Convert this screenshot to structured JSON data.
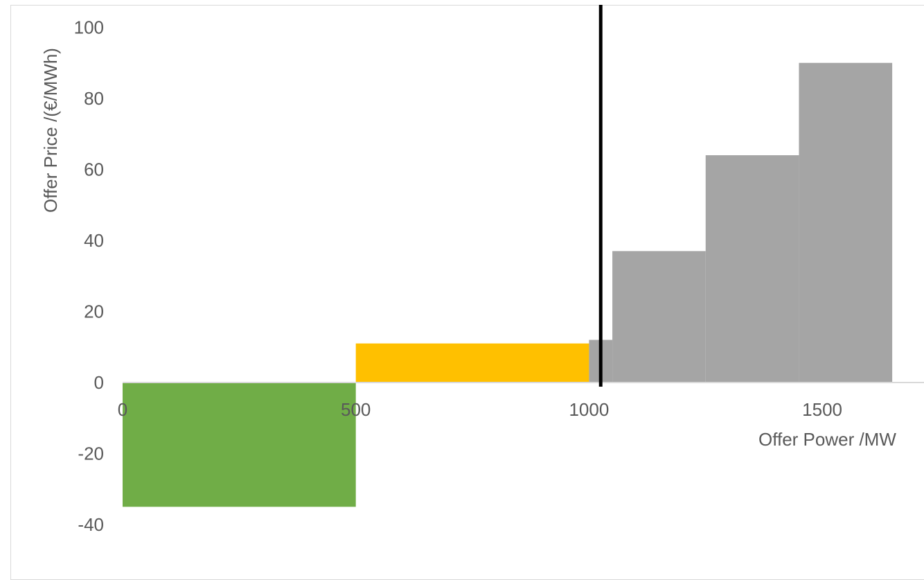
{
  "chart_data": {
    "type": "bar",
    "subtype": "stepped supply curve (variable-width bars)",
    "xlabel": "Offer Power /MW",
    "ylabel": "Offer Price /(€/MWh)",
    "xlim": [
      0,
      1700
    ],
    "ylim": [
      -40,
      100
    ],
    "x_ticks": [
      "0",
      "500",
      "1000",
      "1500"
    ],
    "y_ticks": [
      "100",
      "80",
      "60",
      "40",
      "20",
      "0",
      "-20",
      "-40"
    ],
    "grid": false,
    "legend": "none",
    "blocks": [
      {
        "x_start": 0,
        "x_end": 500,
        "price": -35,
        "color": "#70ad47"
      },
      {
        "x_start": 500,
        "x_end": 1000,
        "price": 11,
        "color": "#ffc000"
      },
      {
        "x_start": 1000,
        "x_end": 1050,
        "price": 12,
        "color": "#a5a5a5"
      },
      {
        "x_start": 1050,
        "x_end": 1250,
        "price": 37,
        "color": "#a5a5a5"
      },
      {
        "x_start": 1250,
        "x_end": 1450,
        "price": 64,
        "color": "#a5a5a5"
      },
      {
        "x_start": 1450,
        "x_end": 1650,
        "price": 90,
        "color": "#a5a5a5"
      }
    ],
    "vertical_line": {
      "x": 1025,
      "color": "#000000"
    },
    "axis_color": "#d9d9d9"
  }
}
